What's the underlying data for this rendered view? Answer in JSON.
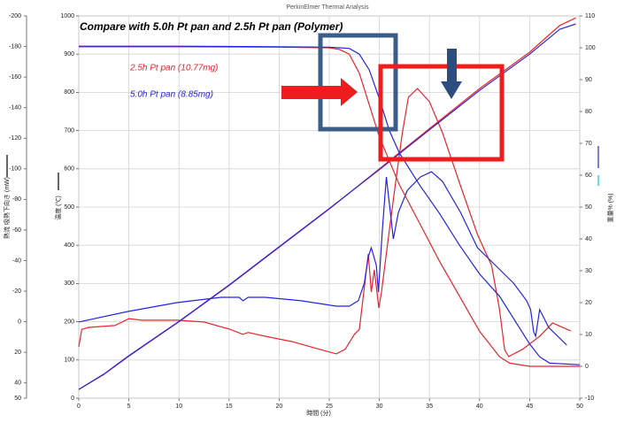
{
  "chart_data": {
    "type": "line",
    "title": "PerkinElmer Thermal Analysis",
    "annotations": [
      {
        "text": "Compare with 5.0h Pt pan and 2.5h Pt pan (Polymer)",
        "color": "#000000"
      },
      {
        "text": "2.5h Pt pan (10.77mg)",
        "color": "#e8242b"
      },
      {
        "text": "5.0h Pt pan (8.85mg)",
        "color": "#2323e0"
      }
    ],
    "xlabel": "時間 (分)",
    "ylabel": "熱流 吸熱下向き (mW)",
    "y3label": "温度 (℃)",
    "y2label": "重量% (%)",
    "xlim": [
      0,
      50
    ],
    "xticks": [
      0,
      5,
      10,
      15,
      20,
      25,
      30,
      35,
      40,
      45,
      50
    ],
    "ylim": [
      50,
      -200
    ],
    "yticks": [
      -200,
      -180,
      -160,
      -140,
      -120,
      -100,
      -80,
      -60,
      -40,
      -20,
      0,
      20,
      40,
      50
    ],
    "y3lim": [
      0,
      1000
    ],
    "y3ticks": [
      0,
      100,
      200,
      300,
      400,
      500,
      600,
      700,
      800,
      900,
      1000
    ],
    "y2lim": [
      -10,
      110
    ],
    "y2ticks": [
      -10,
      0,
      10,
      20,
      30,
      40,
      50,
      60,
      70,
      80,
      90,
      100,
      110
    ],
    "grid": true,
    "series": [
      {
        "color": "#e8242b",
        "axis": "y",
        "x": [
          0,
          0.3,
          1,
          3.6,
          5,
          6.3,
          9.8,
          12.5,
          15.1,
          16.4,
          16.9,
          18.6,
          21.3,
          24.0,
          25.7,
          26.6,
          27.5,
          28.0,
          28.9,
          29.2,
          29.5,
          29.95,
          30.2,
          31.0,
          31.7,
          32.3,
          32.9,
          33.8,
          35.0,
          36.3,
          38.1,
          39.8,
          41.2,
          42.0,
          42.5,
          42.9,
          44.3,
          46.0,
          47.3,
          48.7,
          49.1
        ],
        "values": [
          16.4,
          5,
          3.7,
          2.5,
          -2,
          -1,
          -1,
          0.2,
          5,
          8.3,
          7,
          9.5,
          13,
          18,
          21,
          18,
          8.3,
          5,
          -44.3,
          -19.4,
          -33.9,
          -9,
          -19,
          -60,
          -94.7,
          -123.6,
          -146.8,
          -152.5,
          -143.9,
          -123.6,
          -88.9,
          -57,
          -36.8,
          -7.9,
          18.2,
          22.8,
          18,
          9.5,
          0.8,
          4.9,
          6
        ]
      },
      {
        "color": "#2323e0",
        "axis": "y",
        "x": [
          0,
          4.9,
          9.8,
          14.2,
          16.0,
          16.4,
          16.9,
          18.6,
          22.2,
          25.7,
          27.0,
          27.9,
          28.5,
          28.9,
          29.2,
          29.7,
          29.9,
          30.3,
          30.7,
          31.0,
          31.4,
          31.9,
          32.8,
          34.1,
          35.2,
          36.3,
          38.1,
          39.8,
          41.6,
          43.4,
          44.7,
          45.1,
          45.4,
          45.6,
          46.0,
          46.9,
          48.7
        ],
        "values": [
          0.2,
          -6.7,
          -12.5,
          -16,
          -16,
          -13.7,
          -16,
          -16,
          -13.7,
          -10.2,
          -10.2,
          -13.7,
          -25.2,
          -42.6,
          -48.4,
          -36.8,
          -19.4,
          -60,
          -94.7,
          -77.3,
          -54.2,
          -71.5,
          -86,
          -94.7,
          -98.1,
          -91.8,
          -71.5,
          -48.4,
          -36.8,
          -25.2,
          -13.7,
          -7.9,
          6.6,
          9.5,
          -7.9,
          3.7,
          15.3
        ]
      },
      {
        "color": "#e8242b",
        "axis": "y3",
        "x": [
          0,
          2.5,
          5,
          10,
          15,
          20,
          25,
          30,
          35,
          40,
          45,
          48,
          49.6
        ],
        "values": [
          23,
          62,
          110,
          200,
          295,
          395,
          495,
          600,
          705,
          810,
          905,
          975,
          995
        ]
      },
      {
        "color": "#2323e0",
        "axis": "y3",
        "x": [
          0,
          2.5,
          5,
          10,
          15,
          20,
          25,
          30,
          35,
          40,
          45,
          48,
          49.6
        ],
        "values": [
          23,
          63,
          111,
          201,
          296,
          396,
          496,
          598,
          702,
          805,
          900,
          965,
          979
        ]
      },
      {
        "color": "#e8242b",
        "axis": "y2",
        "x": [
          0,
          10,
          20,
          25,
          26,
          27,
          28,
          29,
          30,
          32,
          34,
          36,
          38,
          40,
          41,
          42,
          43,
          45,
          50
        ],
        "values": [
          100.3,
          100.3,
          100.2,
          100,
          99.5,
          98,
          92,
          82,
          72,
          57,
          45,
          33,
          22,
          11,
          7,
          3,
          1,
          0,
          0
        ]
      },
      {
        "color": "#2323e0",
        "axis": "y2",
        "x": [
          0,
          10,
          20,
          25,
          27,
          28,
          29,
          30,
          31,
          32,
          34,
          36,
          38,
          40,
          42,
          44,
          45,
          46,
          47,
          50
        ],
        "values": [
          100.5,
          100.5,
          100.3,
          100.2,
          99.8,
          98,
          93,
          84,
          74,
          67,
          57,
          48,
          38,
          29,
          22,
          12,
          7,
          3,
          1,
          0.5
        ]
      }
    ]
  }
}
